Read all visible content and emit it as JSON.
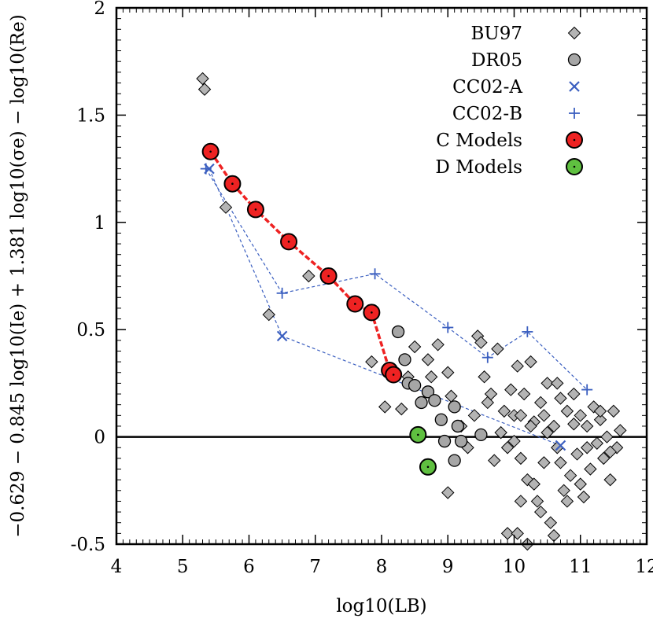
{
  "chart_data": {
    "type": "scatter",
    "xlabel": "log10(LB)",
    "ylabel": "−0.629 − 0.845 log10(Ie) + 1.381 log10(σe) − log10(Re)",
    "xlim": [
      4,
      12
    ],
    "ylim": [
      -0.5,
      2
    ],
    "xticks": [
      4,
      5,
      6,
      7,
      8,
      9,
      10,
      11,
      12
    ],
    "xtick_labels": [
      "4",
      "5",
      "6",
      "7",
      "8",
      "9",
      "10",
      "11",
      "12"
    ],
    "yticks": [
      -0.5,
      0,
      0.5,
      1,
      1.5,
      2
    ],
    "ytick_labels": [
      "-0.5",
      "0",
      "0.5",
      "1",
      "1.5",
      "2"
    ],
    "zero_line": 0,
    "legend_position": "top-right",
    "legend": [
      "BU97",
      "DR05",
      "CC02-A",
      "CC02-B",
      "C Models",
      "D Models"
    ],
    "colors": {
      "bu97": "#b4b4b4",
      "dr05": "#a6a6a6",
      "cc02": "#3b5fc0",
      "c_models": "#ee2222",
      "d_models": "#5fc040",
      "line": "#000000"
    },
    "series": [
      {
        "name": "BU97",
        "marker": "diamond",
        "points": [
          [
            5.3,
            1.67
          ],
          [
            5.33,
            1.62
          ],
          [
            5.65,
            1.07
          ],
          [
            6.3,
            0.57
          ],
          [
            6.9,
            0.75
          ],
          [
            7.85,
            0.35
          ],
          [
            8.05,
            0.14
          ],
          [
            8.2,
            0.3
          ],
          [
            8.3,
            0.13
          ],
          [
            8.4,
            0.28
          ],
          [
            8.5,
            0.42
          ],
          [
            8.7,
            0.36
          ],
          [
            8.75,
            0.28
          ],
          [
            8.85,
            0.43
          ],
          [
            9.0,
            0.3
          ],
          [
            9.05,
            0.19
          ],
          [
            9.2,
            0.05
          ],
          [
            9.3,
            -0.05
          ],
          [
            9.4,
            0.1
          ],
          [
            9.45,
            0.47
          ],
          [
            9.5,
            0.44
          ],
          [
            9.55,
            0.28
          ],
          [
            9.6,
            0.16
          ],
          [
            9.65,
            0.2
          ],
          [
            9.7,
            -0.11
          ],
          [
            9.75,
            0.41
          ],
          [
            9.8,
            0.02
          ],
          [
            9.85,
            0.12
          ],
          [
            9.9,
            -0.05
          ],
          [
            9.95,
            0.22
          ],
          [
            10.0,
            0.1
          ],
          [
            10.05,
            0.33
          ],
          [
            10.1,
            -0.1
          ],
          [
            10.15,
            0.2
          ],
          [
            10.2,
            -0.2
          ],
          [
            10.25,
            0.35
          ],
          [
            10.3,
            0.07
          ],
          [
            10.35,
            -0.3
          ],
          [
            10.4,
            0.16
          ],
          [
            10.45,
            -0.12
          ],
          [
            10.5,
            0.25
          ],
          [
            10.55,
            -0.4
          ],
          [
            10.6,
            0.05
          ],
          [
            10.65,
            -0.05
          ],
          [
            10.7,
            0.18
          ],
          [
            10.75,
            -0.25
          ],
          [
            10.8,
            0.12
          ],
          [
            10.85,
            -0.18
          ],
          [
            10.9,
            0.2
          ],
          [
            10.95,
            -0.08
          ],
          [
            11.0,
            0.1
          ],
          [
            11.05,
            -0.28
          ],
          [
            11.1,
            0.05
          ],
          [
            11.15,
            -0.15
          ],
          [
            11.2,
            0.14
          ],
          [
            11.25,
            -0.03
          ],
          [
            11.3,
            0.08
          ],
          [
            11.35,
            -0.1
          ],
          [
            11.4,
            0.0
          ],
          [
            11.45,
            -0.2
          ],
          [
            11.5,
            0.12
          ],
          [
            11.55,
            -0.05
          ],
          [
            11.6,
            0.03
          ],
          [
            9.0,
            -0.26
          ],
          [
            9.9,
            -0.45
          ],
          [
            10.05,
            -0.45
          ],
          [
            10.2,
            -0.5
          ],
          [
            10.6,
            -0.46
          ],
          [
            10.1,
            -0.3
          ],
          [
            10.3,
            -0.22
          ],
          [
            10.4,
            -0.35
          ],
          [
            10.5,
            0.02
          ],
          [
            10.65,
            0.25
          ],
          [
            10.8,
            -0.3
          ],
          [
            11.0,
            -0.22
          ],
          [
            10.0,
            -0.02
          ],
          [
            10.1,
            0.1
          ],
          [
            10.25,
            0.05
          ],
          [
            10.45,
            0.1
          ],
          [
            10.7,
            -0.12
          ],
          [
            10.9,
            0.06
          ],
          [
            11.1,
            -0.05
          ],
          [
            11.3,
            0.12
          ],
          [
            11.45,
            -0.07
          ]
        ]
      },
      {
        "name": "DR05",
        "marker": "circle",
        "points": [
          [
            8.25,
            0.49
          ],
          [
            8.35,
            0.36
          ],
          [
            8.4,
            0.25
          ],
          [
            8.5,
            0.24
          ],
          [
            8.6,
            0.16
          ],
          [
            8.7,
            0.21
          ],
          [
            8.8,
            0.17
          ],
          [
            8.9,
            0.08
          ],
          [
            8.95,
            -0.02
          ],
          [
            9.1,
            0.14
          ],
          [
            9.15,
            0.05
          ],
          [
            9.2,
            -0.02
          ],
          [
            9.1,
            -0.11
          ],
          [
            9.5,
            0.01
          ]
        ]
      },
      {
        "name": "CC02-A",
        "marker": "x",
        "points": [
          [
            5.4,
            1.25
          ],
          [
            6.5,
            0.47
          ],
          [
            10.7,
            -0.04
          ]
        ]
      },
      {
        "name": "CC02-B",
        "marker": "plus",
        "points": [
          [
            5.35,
            1.25
          ],
          [
            6.5,
            0.67
          ],
          [
            7.9,
            0.76
          ],
          [
            9.0,
            0.51
          ],
          [
            9.6,
            0.37
          ],
          [
            10.2,
            0.49
          ],
          [
            11.1,
            0.22
          ]
        ]
      },
      {
        "name": "C Models",
        "marker": "big-circle",
        "points": [
          [
            5.42,
            1.33
          ],
          [
            5.75,
            1.18
          ],
          [
            6.1,
            1.06
          ],
          [
            6.6,
            0.91
          ],
          [
            7.2,
            0.75
          ],
          [
            7.6,
            0.62
          ],
          [
            7.85,
            0.58
          ],
          [
            8.12,
            0.31
          ],
          [
            8.18,
            0.29
          ]
        ]
      },
      {
        "name": "D Models",
        "marker": "big-circle",
        "points": [
          [
            8.55,
            0.01
          ],
          [
            8.7,
            -0.14
          ]
        ]
      }
    ]
  }
}
